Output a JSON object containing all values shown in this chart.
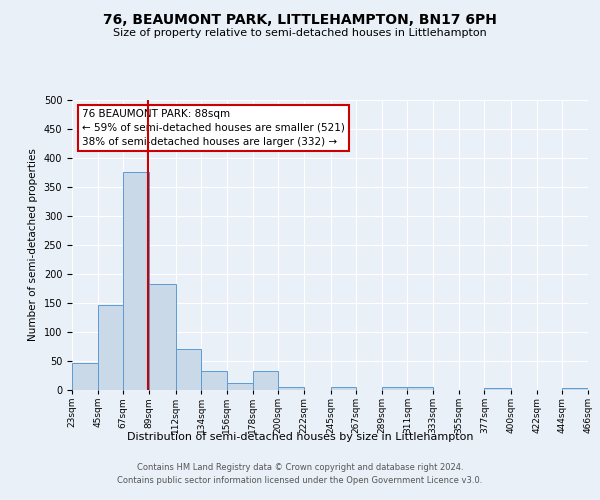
{
  "title": "76, BEAUMONT PARK, LITTLEHAMPTON, BN17 6PH",
  "subtitle": "Size of property relative to semi-detached houses in Littlehampton",
  "xlabel": "Distribution of semi-detached houses by size in Littlehampton",
  "ylabel": "Number of semi-detached properties",
  "bin_edges": [
    23,
    45,
    67,
    89,
    112,
    134,
    156,
    178,
    200,
    222,
    245,
    267,
    289,
    311,
    333,
    355,
    377,
    400,
    422,
    444,
    466
  ],
  "bar_heights": [
    47,
    147,
    376,
    183,
    70,
    32,
    12,
    33,
    6,
    0,
    5,
    0,
    5,
    5,
    0,
    0,
    3,
    0,
    0,
    3
  ],
  "bar_color": "#c9d9e8",
  "bar_edge_color": "#5b9bd5",
  "property_size": 88,
  "vline_color": "#cc0000",
  "ylim": [
    0,
    500
  ],
  "yticks": [
    0,
    50,
    100,
    150,
    200,
    250,
    300,
    350,
    400,
    450,
    500
  ],
  "xtick_labels": [
    "23sqm",
    "45sqm",
    "67sqm",
    "89sqm",
    "112sqm",
    "134sqm",
    "156sqm",
    "178sqm",
    "200sqm",
    "222sqm",
    "245sqm",
    "267sqm",
    "289sqm",
    "311sqm",
    "333sqm",
    "355sqm",
    "377sqm",
    "400sqm",
    "422sqm",
    "444sqm",
    "466sqm"
  ],
  "annotation_title": "76 BEAUMONT PARK: 88sqm",
  "annotation_line1": "← 59% of semi-detached houses are smaller (521)",
  "annotation_line2": "38% of semi-detached houses are larger (332) →",
  "annotation_box_color": "#ffffff",
  "annotation_box_edge": "#cc0000",
  "footer1": "Contains HM Land Registry data © Crown copyright and database right 2024.",
  "footer2": "Contains public sector information licensed under the Open Government Licence v3.0.",
  "bg_color": "#eaf0f8",
  "plot_bg_color": "#eaf0f8",
  "grid_color": "#ffffff"
}
